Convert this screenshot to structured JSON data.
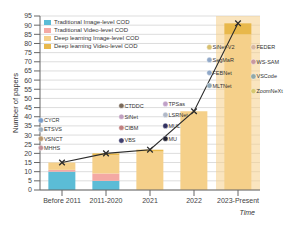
{
  "chart_data": {
    "type": "bar",
    "stacked": true,
    "categories": [
      "Before 2011",
      "2011-2020",
      "2021",
      "2022",
      "2023-Present"
    ],
    "series": [
      {
        "name": "Traditional Image-level COD",
        "color": "#5bbcd6",
        "values": [
          10,
          5,
          0,
          0,
          0
        ]
      },
      {
        "name": "Traditional Video-level COD",
        "color": "#f4a9a4",
        "values": [
          1,
          4,
          0,
          0,
          0
        ]
      },
      {
        "name": "Deep learning Image-level COD",
        "color": "#f5d08a",
        "values": [
          4,
          10,
          21,
          43,
          85
        ]
      },
      {
        "name": "Deep learning Video-level COD",
        "color": "#e8b84b",
        "values": [
          0,
          1,
          1,
          0,
          6
        ]
      },
      {
        "type": "line",
        "color": "#2a2a2a",
        "marker": "x",
        "values": [
          15,
          20,
          22,
          43,
          91
        ]
      }
    ],
    "ylabel": "Number of papers",
    "xlabel": "Time",
    "ylim": [
      0,
      95
    ],
    "yticks": [
      0,
      5,
      10,
      15,
      20,
      25,
      30,
      35,
      40,
      45,
      50,
      55,
      60,
      65,
      70,
      75,
      80,
      85,
      90,
      95
    ],
    "grid": true,
    "legend": "upper left",
    "highlight": {
      "category": "2023-Present",
      "color": "#f5d08a"
    },
    "annotations": [
      {
        "text": "CYCR",
        "x": "Before 2011",
        "y": 38,
        "color": "#7a9cc8"
      },
      {
        "text": "ETSVS",
        "x": "Before 2011",
        "y": 33,
        "color": "#a0b0c0"
      },
      {
        "text": "VSNCT",
        "x": "Before 2011",
        "y": 28,
        "color": "#b89870"
      },
      {
        "text": "MHHS",
        "x": "Before 2011",
        "y": 23,
        "color": "#c09098"
      },
      {
        "text": "CTDDC",
        "x": "2011-2020",
        "y": 46,
        "color": "#7a6a5a"
      },
      {
        "text": "SiNet",
        "x": "2011-2020",
        "y": 40,
        "color": "#c0a0c0"
      },
      {
        "text": "CIBM",
        "x": "2011-2020",
        "y": 34,
        "color": "#c08080"
      },
      {
        "text": "VBS",
        "x": "2011-2020",
        "y": 27,
        "color": "#404070"
      },
      {
        "text": "TPSas",
        "x": "2021",
        "y": 47,
        "color": "#c0a0c8"
      },
      {
        "text": "LSRNet",
        "x": "2021",
        "y": 41,
        "color": "#b0b8c8"
      },
      {
        "text": "MUL",
        "x": "2021",
        "y": 35,
        "color": "#303060"
      },
      {
        "text": "MU",
        "x": "2021",
        "y": 28,
        "color": "#202030"
      },
      {
        "text": "SiNet-V2",
        "x": "2022",
        "y": 78,
        "color": "#d8c070"
      },
      {
        "text": "SegMaR",
        "x": "2022",
        "y": 71,
        "color": "#90a8c8"
      },
      {
        "text": "FEBNet",
        "x": "2022",
        "y": 64,
        "color": "#90a8c8"
      },
      {
        "text": "MLTNet",
        "x": "2022",
        "y": 57,
        "color": "#90a8b8"
      },
      {
        "text": "FEDER",
        "x": "2023-Present",
        "y": 78,
        "color": "#d8b8a0"
      },
      {
        "text": "WS-SAM",
        "x": "2023-Present",
        "y": 70,
        "color": "#c898a0"
      },
      {
        "text": "VSCode",
        "x": "2023-Present",
        "y": 62,
        "color": "#90a8a8"
      },
      {
        "text": "ZoomNeXt",
        "x": "2023-Present",
        "y": 54,
        "color": "#d8c870"
      }
    ]
  }
}
